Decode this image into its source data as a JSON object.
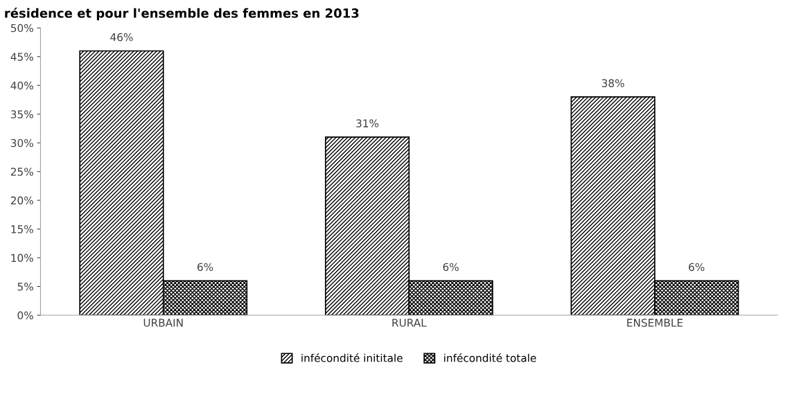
{
  "chart_data": {
    "type": "bar",
    "title": "résidence et pour l'ensemble des femmes en 2013",
    "categories": [
      "URBAIN",
      "RURAL",
      "ENSEMBLE"
    ],
    "series": [
      {
        "name": "infécondité inititale",
        "color": "#000000",
        "values": [
          46,
          31,
          38
        ],
        "value_labels": [
          "46%",
          "31%",
          "38%"
        ]
      },
      {
        "name": "infécondité totale",
        "color": "#000000",
        "values": [
          6,
          6,
          6
        ],
        "value_labels": [
          "6%",
          "6%",
          "6%"
        ]
      }
    ],
    "ylim": [
      0,
      50
    ],
    "yticks": [
      {
        "value": 0,
        "label": "0%"
      },
      {
        "value": 5,
        "label": "5%"
      },
      {
        "value": 10,
        "label": "10%"
      },
      {
        "value": 15,
        "label": "15%"
      },
      {
        "value": 20,
        "label": "20%"
      },
      {
        "value": 25,
        "label": "25%"
      },
      {
        "value": 30,
        "label": "30%"
      },
      {
        "value": 35,
        "label": "35%"
      },
      {
        "value": 40,
        "label": "40%"
      },
      {
        "value": 45,
        "label": "45%"
      },
      {
        "value": 50,
        "label": "50%"
      }
    ],
    "grid": false,
    "legend": "bottom"
  }
}
